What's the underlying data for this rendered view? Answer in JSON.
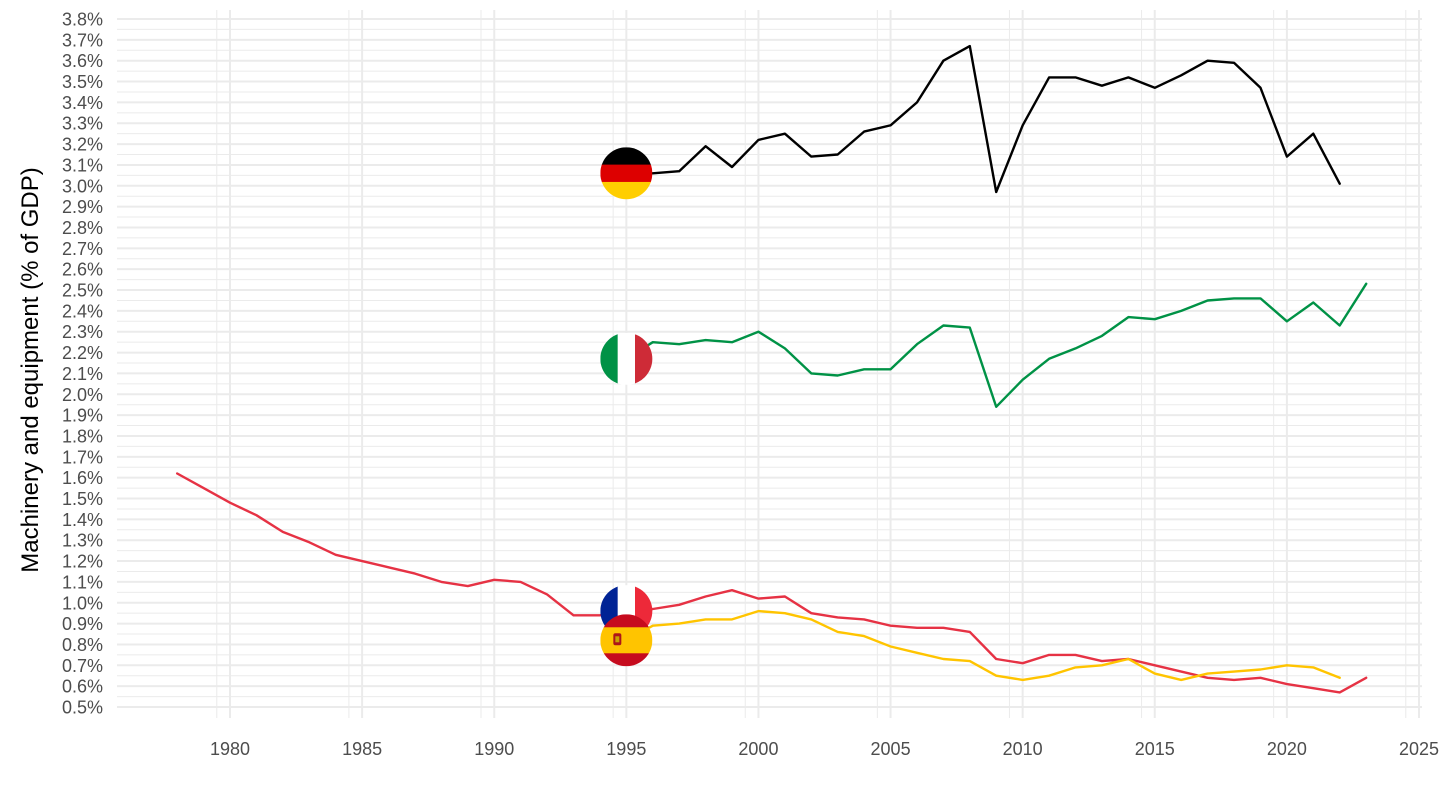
{
  "chart_data": {
    "type": "line",
    "title": "",
    "xlabel": "",
    "ylabel": "Machinery and equipment (% of GDP)",
    "xlim": [
      1974,
      2025
    ],
    "ylim": [
      0.45,
      3.8
    ],
    "x_ticks": [
      1980,
      1985,
      1990,
      1995,
      2000,
      2005,
      2010,
      2015,
      2020,
      2025
    ],
    "y_ticks": [
      0.5,
      0.6,
      0.7,
      0.8,
      0.9,
      1.0,
      1.1,
      1.2,
      1.3,
      1.4,
      1.5,
      1.6,
      1.7,
      1.8,
      1.9,
      2.0,
      2.1,
      2.2,
      2.3,
      2.4,
      2.5,
      2.6,
      2.7,
      2.8,
      2.9,
      3.0,
      3.1,
      3.2,
      3.3,
      3.4,
      3.5,
      3.6,
      3.7,
      3.8
    ],
    "y_tick_labels": [
      "0.5%",
      "0.6%",
      "0.7%",
      "0.8%",
      "0.9%",
      "1.0%",
      "1.1%",
      "1.2%",
      "1.3%",
      "1.4%",
      "1.5%",
      "1.6%",
      "1.7%",
      "1.8%",
      "1.9%",
      "2.0%",
      "2.1%",
      "2.2%",
      "2.3%",
      "2.4%",
      "2.5%",
      "2.6%",
      "2.7%",
      "2.8%",
      "2.9%",
      "3.0%",
      "3.1%",
      "3.2%",
      "3.3%",
      "3.4%",
      "3.5%",
      "3.6%",
      "3.7%",
      "3.8%"
    ],
    "grid": true,
    "legend": "none",
    "series": [
      {
        "flag": "germany-flag",
        "color": "#000000",
        "flag_colors": [
          "#000000",
          "#dd0000",
          "#ffce00"
        ],
        "x": [
          1995,
          1996,
          1997,
          1998,
          1999,
          2000,
          2001,
          2002,
          2003,
          2004,
          2005,
          2006,
          2007,
          2008,
          2009,
          2010,
          2011,
          2012,
          2013,
          2014,
          2015,
          2016,
          2017,
          2018,
          2019,
          2020,
          2021,
          2022
        ],
        "y": [
          3.06,
          3.06,
          3.07,
          3.19,
          3.09,
          3.22,
          3.25,
          3.14,
          3.15,
          3.26,
          3.29,
          3.4,
          3.6,
          3.67,
          2.97,
          3.29,
          3.52,
          3.52,
          3.48,
          3.52,
          3.47,
          3.53,
          3.6,
          3.59,
          3.47,
          3.14,
          3.25,
          3.01
        ]
      },
      {
        "flag": "italy-flag",
        "color": "#009246",
        "flag_colors": [
          "#009246",
          "#ffffff",
          "#ce2b37"
        ],
        "x": [
          1995,
          1996,
          1997,
          1998,
          1999,
          2000,
          2001,
          2002,
          2003,
          2004,
          2005,
          2006,
          2007,
          2008,
          2009,
          2010,
          2011,
          2012,
          2013,
          2014,
          2015,
          2016,
          2017,
          2018,
          2019,
          2020,
          2021,
          2022,
          2023
        ],
        "y": [
          2.17,
          2.25,
          2.24,
          2.26,
          2.25,
          2.3,
          2.22,
          2.1,
          2.09,
          2.12,
          2.12,
          2.24,
          2.33,
          2.32,
          1.94,
          2.07,
          2.17,
          2.22,
          2.28,
          2.37,
          2.36,
          2.4,
          2.45,
          2.46,
          2.46,
          2.35,
          2.44,
          2.33,
          2.53
        ]
      },
      {
        "flag": "france-flag",
        "color": "#e63244",
        "flag_colors": [
          "#002395",
          "#ffffff",
          "#ed2939"
        ],
        "x": [
          1978,
          1979,
          1980,
          1981,
          1982,
          1983,
          1984,
          1985,
          1986,
          1987,
          1988,
          1989,
          1990,
          1991,
          1992,
          1993,
          1994,
          1995,
          1996,
          1997,
          1998,
          1999,
          2000,
          2001,
          2002,
          2003,
          2004,
          2005,
          2006,
          2007,
          2008,
          2009,
          2010,
          2011,
          2012,
          2013,
          2014,
          2015,
          2016,
          2017,
          2018,
          2019,
          2020,
          2021,
          2022,
          2023
        ],
        "y": [
          1.62,
          1.55,
          1.48,
          1.42,
          1.34,
          1.29,
          1.23,
          1.2,
          1.17,
          1.14,
          1.1,
          1.08,
          1.11,
          1.1,
          1.04,
          0.94,
          0.94,
          0.96,
          0.97,
          0.99,
          1.03,
          1.06,
          1.02,
          1.03,
          0.95,
          0.93,
          0.92,
          0.89,
          0.88,
          0.88,
          0.86,
          0.73,
          0.71,
          0.75,
          0.75,
          0.72,
          0.73,
          0.7,
          0.67,
          0.64,
          0.63,
          0.64,
          0.61,
          0.59,
          0.57,
          0.64
        ]
      },
      {
        "flag": "spain-flag",
        "color": "#ffc400",
        "flag_colors": [
          "#c60b1e",
          "#ffc400",
          "#c60b1e"
        ],
        "x": [
          1995,
          1996,
          1997,
          1998,
          1999,
          2000,
          2001,
          2002,
          2003,
          2004,
          2005,
          2006,
          2007,
          2008,
          2009,
          2010,
          2011,
          2012,
          2013,
          2014,
          2015,
          2016,
          2017,
          2018,
          2019,
          2020,
          2021,
          2022
        ],
        "y": [
          0.82,
          0.89,
          0.9,
          0.92,
          0.92,
          0.96,
          0.95,
          0.92,
          0.86,
          0.84,
          0.79,
          0.76,
          0.73,
          0.72,
          0.65,
          0.63,
          0.65,
          0.69,
          0.7,
          0.73,
          0.66,
          0.63,
          0.66,
          0.67,
          0.68,
          0.7,
          0.69,
          0.64
        ]
      }
    ]
  }
}
